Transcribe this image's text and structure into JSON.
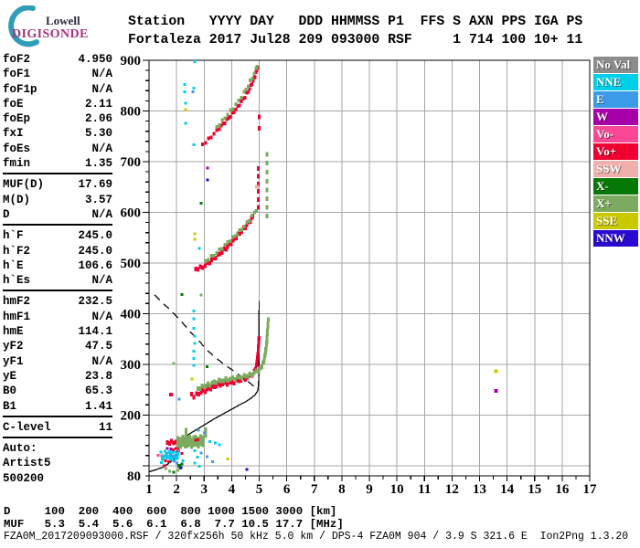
{
  "logo": {
    "line1": "Lowell",
    "line2": "DIGISONDE",
    "arc_color": "#2E9EB8",
    "line1_color": "#2b2b3b",
    "line2_color": "#A4347E"
  },
  "header": {
    "line1": "Station   YYYY DAY   DDD HHMMSS P1  FFS S AXN PPS IGA PS",
    "line2": "Fortaleza 2017 Jul28 209 093000 RSF     1 714 100 10+ 11"
  },
  "params": {
    "groups": [
      {
        "rows": [
          [
            "foF2",
            "4.950"
          ],
          [
            "foF1",
            "N/A"
          ],
          [
            "foF1p",
            "N/A"
          ],
          [
            "foE",
            "2.11"
          ],
          [
            "foEp",
            "2.06"
          ],
          [
            "fxI",
            "5.30"
          ],
          [
            "foEs",
            "N/A"
          ],
          [
            "fmin",
            "1.35"
          ]
        ]
      },
      {
        "rows": [
          [
            "MUF(D)",
            "17.69"
          ],
          [
            "M(D)",
            "3.57"
          ],
          [
            "D",
            "N/A"
          ]
        ]
      },
      {
        "rows": [
          [
            "h`F",
            "245.0"
          ],
          [
            "h`F2",
            "245.0"
          ],
          [
            "h`E",
            "106.6"
          ],
          [
            "h`Es",
            "N/A"
          ]
        ]
      },
      {
        "rows": [
          [
            "hmF2",
            "232.5"
          ],
          [
            "hmF1",
            "N/A"
          ],
          [
            "hmE",
            "114.1"
          ],
          [
            "yF2",
            "47.5"
          ],
          [
            "yF1",
            "N/A"
          ],
          [
            "yE",
            "23.8"
          ],
          [
            "B0",
            "65.3"
          ],
          [
            "B1",
            "1.41"
          ]
        ]
      },
      {
        "rows": [
          [
            "C-level",
            "11"
          ]
        ]
      }
    ],
    "footer_lines": [
      "Auto:",
      "Artist5",
      "500200"
    ]
  },
  "legend": {
    "items": [
      {
        "label": "No Val",
        "color": "#8C8C8C"
      },
      {
        "label": "NNE",
        "color": "#00CFEA"
      },
      {
        "label": "E",
        "color": "#3C9BE8"
      },
      {
        "label": "W",
        "color": "#A800A8"
      },
      {
        "label": "Vo-",
        "color": "#FA4896"
      },
      {
        "label": "Vo+",
        "color": "#EF0030"
      },
      {
        "label": "SSW",
        "color": "#EFB0AC"
      },
      {
        "label": "X-",
        "color": "#067806"
      },
      {
        "label": "X+",
        "color": "#7CAB60"
      },
      {
        "label": "SSE",
        "color": "#C9C900"
      },
      {
        "label": "NNW",
        "color": "#2A0AD0"
      }
    ]
  },
  "chart_data": {
    "type": "scatter",
    "title": "",
    "xlim": [
      1,
      17
    ],
    "ylim": [
      80,
      900
    ],
    "x_ticks": [
      1,
      2,
      3,
      4,
      5,
      6,
      7,
      8,
      9,
      10,
      11,
      12,
      13,
      14,
      15,
      16,
      17
    ],
    "y_tick_labels": [
      80,
      200,
      300,
      400,
      500,
      600,
      700,
      800,
      900
    ],
    "y_minor_step": 20,
    "x_minor_step": 0.5,
    "grid": true,
    "grid_color": "#A6A6A6",
    "frame_color": "#000000",
    "colors": {
      "NoVal": "#8C8C8C",
      "NNE": "#00CFEA",
      "E": "#3C9BE8",
      "W": "#A800A8",
      "Vo-": "#FA4896",
      "Vo+": "#EF0030",
      "SSW": "#EFB0AC",
      "X-": "#067806",
      "X+": "#7CAB60",
      "SSE": "#C9C900",
      "NNW": "#2A0AD0",
      "profile": "#151515"
    },
    "traces": [
      {
        "name": "E-region O-trace",
        "color": "Vo+",
        "thickness": 5,
        "step": 2.5,
        "points": [
          [
            1.66,
            146
          ],
          [
            1.9,
            146
          ],
          [
            2.15,
            149
          ],
          [
            2.45,
            151
          ],
          [
            2.66,
            151
          ]
        ]
      },
      {
        "name": "Es X-band",
        "color": "X+",
        "thickness": 13,
        "step": 2.5,
        "points": [
          [
            2.05,
            147
          ],
          [
            2.4,
            147
          ],
          [
            2.7,
            148
          ],
          [
            3.05,
            149
          ]
        ]
      },
      {
        "name": "F O-trace",
        "color": "Vo+",
        "thickness": 5,
        "step": 2.5,
        "points": [
          [
            2.55,
            241
          ],
          [
            2.62,
            237
          ],
          [
            2.72,
            240
          ],
          [
            2.9,
            245
          ],
          [
            3.1,
            250
          ],
          [
            3.3,
            255
          ],
          [
            3.5,
            259
          ],
          [
            3.75,
            262
          ],
          [
            4.0,
            264
          ],
          [
            4.25,
            268
          ],
          [
            4.5,
            272
          ],
          [
            4.68,
            277
          ],
          [
            4.82,
            285
          ],
          [
            4.9,
            297
          ],
          [
            4.95,
            316
          ],
          [
            4.98,
            338
          ],
          [
            5.0,
            358
          ]
        ]
      },
      {
        "name": "F X-trace",
        "color": "X+",
        "thickness": 5,
        "step": 2.5,
        "points": [
          [
            2.78,
            252
          ],
          [
            3.0,
            257
          ],
          [
            3.2,
            261
          ],
          [
            3.45,
            266
          ],
          [
            3.7,
            269
          ],
          [
            3.95,
            271
          ],
          [
            4.2,
            273
          ],
          [
            4.45,
            276
          ],
          [
            4.65,
            279
          ],
          [
            4.82,
            283
          ],
          [
            4.98,
            288
          ],
          [
            5.08,
            294
          ],
          [
            5.16,
            305
          ],
          [
            5.22,
            320
          ],
          [
            5.27,
            342
          ],
          [
            5.3,
            365
          ],
          [
            5.33,
            390
          ]
        ]
      },
      {
        "name": "2nd-hop O-trace",
        "color": "Vo+",
        "thickness": 5,
        "step": 3,
        "points": [
          [
            2.7,
            488
          ],
          [
            2.95,
            492
          ],
          [
            3.2,
            502
          ],
          [
            3.5,
            515
          ],
          [
            3.8,
            529
          ],
          [
            4.05,
            544
          ],
          [
            4.3,
            559
          ],
          [
            4.5,
            571
          ],
          [
            4.68,
            584
          ],
          [
            4.8,
            596
          ]
        ]
      },
      {
        "name": "2nd-hop X-trace",
        "color": "X+",
        "thickness": 4,
        "step": 4,
        "points": [
          [
            3.05,
            504
          ],
          [
            3.35,
            516
          ],
          [
            3.65,
            530
          ],
          [
            3.95,
            545
          ],
          [
            4.2,
            558
          ],
          [
            4.45,
            572
          ],
          [
            4.65,
            585
          ],
          [
            4.83,
            599
          ],
          [
            4.97,
            611
          ]
        ]
      },
      {
        "name": "3rd-hop O-trace",
        "color": "Vo+",
        "thickness": 4,
        "step": 3.5,
        "points": [
          [
            2.95,
            734
          ],
          [
            3.15,
            744
          ],
          [
            3.35,
            755
          ],
          [
            3.55,
            766
          ],
          [
            3.75,
            778
          ],
          [
            3.95,
            790
          ],
          [
            4.15,
            803
          ],
          [
            4.35,
            818
          ],
          [
            4.55,
            834
          ],
          [
            4.7,
            849
          ],
          [
            4.82,
            864
          ],
          [
            4.92,
            880
          ],
          [
            4.98,
            895
          ]
        ]
      },
      {
        "name": "3rd-hop X-trace",
        "color": "X+",
        "thickness": 4,
        "step": 4.5,
        "points": [
          [
            3.45,
            768
          ],
          [
            3.65,
            780
          ],
          [
            3.85,
            793
          ],
          [
            4.05,
            806
          ],
          [
            4.25,
            820
          ],
          [
            4.45,
            836
          ],
          [
            4.6,
            850
          ],
          [
            4.75,
            866
          ],
          [
            4.88,
            882
          ],
          [
            4.97,
            897
          ]
        ]
      }
    ],
    "dash_columns": [
      {
        "f": 4.97,
        "color": "Vo+",
        "alts": [
          610,
          625,
          641,
          656,
          671,
          686
        ]
      },
      {
        "f": 5.28,
        "color": "X+",
        "alts": [
          593,
          610,
          627,
          644,
          661,
          679,
          697,
          714
        ]
      },
      {
        "f": 2.35,
        "color": "X+",
        "alts": [
          158,
          164,
          170
        ]
      },
      {
        "f": 3.05,
        "color": "X+",
        "alts": [
          159,
          165,
          171
        ]
      },
      {
        "f": 5.0,
        "color": "Vo+",
        "alts": [
          766,
          788
        ]
      }
    ],
    "scatter": [
      [
        1.33,
        121,
        "Vo-"
      ],
      [
        1.43,
        127,
        "NNE"
      ],
      [
        1.45,
        106,
        "NNE"
      ],
      [
        1.47,
        120,
        "Vo-"
      ],
      [
        1.5,
        113,
        "NNE",
        4
      ],
      [
        1.55,
        100,
        "Vo+"
      ],
      [
        1.55,
        119,
        "NNE",
        4
      ],
      [
        1.58,
        129,
        "NNE"
      ],
      [
        1.6,
        110,
        "Vo+"
      ],
      [
        1.62,
        94,
        "X+"
      ],
      [
        1.63,
        124,
        "E"
      ],
      [
        1.66,
        134,
        "W"
      ],
      [
        1.68,
        117,
        "NNE",
        5
      ],
      [
        1.72,
        108,
        "Vo+"
      ],
      [
        1.74,
        89,
        "X+"
      ],
      [
        1.75,
        127,
        "NNE",
        4
      ],
      [
        1.78,
        121,
        "E"
      ],
      [
        1.8,
        133,
        "W"
      ],
      [
        1.82,
        114,
        "NNE",
        5
      ],
      [
        1.86,
        126,
        "NNE"
      ],
      [
        1.88,
        131,
        "Vo+"
      ],
      [
        1.9,
        87,
        "X-"
      ],
      [
        1.9,
        119,
        "E",
        4
      ],
      [
        1.92,
        109,
        "E"
      ],
      [
        1.95,
        127,
        "NNE"
      ],
      [
        1.98,
        134,
        "Vo+"
      ],
      [
        2.0,
        116,
        "NNE",
        5
      ],
      [
        2.02,
        105,
        "E"
      ],
      [
        2.04,
        91,
        "X+"
      ],
      [
        2.05,
        123,
        "NNE",
        4
      ],
      [
        2.08,
        130,
        "Vo-"
      ],
      [
        2.1,
        100,
        "X-",
        4
      ],
      [
        2.13,
        95,
        "X-"
      ],
      [
        2.16,
        96,
        "NNW"
      ],
      [
        2.2,
        103,
        "X-"
      ],
      [
        2.2,
        124,
        "Vo+"
      ],
      [
        2.23,
        110,
        "NNE"
      ],
      [
        2.66,
        130,
        "NNE"
      ],
      [
        2.76,
        117,
        "NNE"
      ],
      [
        2.66,
        105,
        "NNE"
      ],
      [
        2.83,
        99,
        "NNE"
      ],
      [
        2.9,
        125,
        "E"
      ],
      [
        3.0,
        165,
        "E"
      ],
      [
        2.8,
        170,
        "E"
      ],
      [
        3.2,
        148,
        "NNE"
      ],
      [
        3.4,
        145,
        "NNE"
      ],
      [
        3.56,
        141,
        "NNE"
      ],
      [
        3.1,
        118,
        "E"
      ],
      [
        3.3,
        108,
        "E"
      ],
      [
        3.85,
        113,
        "SSE"
      ],
      [
        4.55,
        93,
        "NNW"
      ],
      [
        2.7,
        150,
        "Vo+"
      ],
      [
        2.78,
        151,
        "Vo+"
      ],
      [
        1.8,
        240,
        "Vo+",
        4
      ],
      [
        2.1,
        231,
        "E"
      ],
      [
        2.56,
        271,
        "SSE"
      ],
      [
        2.63,
        298,
        "NNE"
      ],
      [
        2.63,
        312,
        "NNE"
      ],
      [
        2.63,
        326,
        "NNE"
      ],
      [
        2.66,
        341,
        "NNE"
      ],
      [
        2.66,
        356,
        "NNE"
      ],
      [
        2.63,
        371,
        "NNE"
      ],
      [
        2.63,
        390,
        "NNE"
      ],
      [
        2.63,
        405,
        "NNE"
      ],
      [
        2.83,
        529,
        "NNE"
      ],
      [
        2.66,
        558,
        "SSE"
      ],
      [
        2.66,
        547,
        "SSE"
      ],
      [
        2.9,
        437,
        "X+"
      ],
      [
        1.9,
        302,
        "X+"
      ],
      [
        3.1,
        295,
        "X-"
      ],
      [
        2.2,
        438,
        "X-"
      ],
      [
        4.92,
        650,
        "SSW",
        4
      ],
      [
        2.3,
        852,
        "NNE"
      ],
      [
        2.3,
        838,
        "NNE"
      ],
      [
        2.33,
        815,
        "NNE"
      ],
      [
        2.33,
        803,
        "SSE"
      ],
      [
        2.33,
        776,
        "NNE"
      ],
      [
        2.63,
        845,
        "NNE"
      ],
      [
        2.6,
        838,
        "E"
      ],
      [
        2.66,
        897,
        "NNE"
      ],
      [
        2.63,
        733,
        "NNE"
      ],
      [
        3.13,
        687,
        "W"
      ],
      [
        3.13,
        664,
        "NNW"
      ],
      [
        2.9,
        618,
        "X-"
      ],
      [
        13.6,
        286,
        "SSE",
        4
      ],
      [
        13.6,
        248,
        "W",
        4
      ]
    ],
    "profile": {
      "solid": [
        [
          1.0,
          88
        ],
        [
          1.25,
          92
        ],
        [
          1.5,
          97
        ],
        [
          1.7,
          104
        ],
        [
          1.88,
          112
        ],
        [
          2.0,
          123
        ],
        [
          2.08,
          136
        ],
        [
          2.15,
          148
        ],
        [
          2.3,
          156
        ],
        [
          2.5,
          164
        ],
        [
          2.75,
          172
        ],
        [
          3.05,
          182
        ],
        [
          3.35,
          192
        ],
        [
          3.65,
          201
        ],
        [
          3.95,
          210
        ],
        [
          4.25,
          219
        ],
        [
          4.5,
          226
        ],
        [
          4.7,
          233
        ],
        [
          4.85,
          240
        ],
        [
          4.95,
          248
        ],
        [
          4.98,
          262
        ],
        [
          4.99,
          290
        ],
        [
          5.0,
          425
        ]
      ],
      "dashed": [
        [
          1.2,
          437
        ],
        [
          1.5,
          421
        ],
        [
          1.85,
          403
        ],
        [
          2.2,
          383
        ],
        [
          2.55,
          361
        ],
        [
          2.85,
          344
        ],
        [
          3.15,
          326
        ],
        [
          3.45,
          312
        ],
        [
          3.75,
          299
        ],
        [
          4.05,
          288
        ],
        [
          4.35,
          276
        ],
        [
          4.6,
          266
        ],
        [
          4.8,
          257
        ],
        [
          4.95,
          249
        ]
      ]
    }
  },
  "footer": {
    "d_row": "D     100  200  400  600  800 1000 1500 3000 [km]",
    "muf_row": "MUF   5.3  5.4  5.6  6.1  6.8  7.7 10.5 17.7 [MHz]",
    "status": "FZA0M_2017209093000.RSF / 320fx256h 50 kHz 5.0 km / DPS-4 FZA0M 904 / 3.9 S 321.6 E  Ion2Png 1.3.20"
  }
}
